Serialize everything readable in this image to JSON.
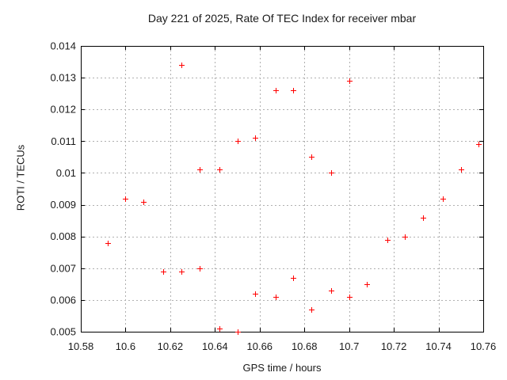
{
  "chart_data": {
    "type": "scatter",
    "title": "Day 221 of 2025, Rate Of TEC Index for receiver mbar",
    "xlabel": "GPS time / hours",
    "ylabel": "ROTI / TECUs",
    "xlim": [
      10.58,
      10.76
    ],
    "ylim": [
      0.005,
      0.014
    ],
    "grid": true,
    "legend": "none",
    "x_ticks": [
      {
        "v": 10.58,
        "label": "10.58"
      },
      {
        "v": 10.6,
        "label": "10.6"
      },
      {
        "v": 10.62,
        "label": "10.62"
      },
      {
        "v": 10.64,
        "label": "10.64"
      },
      {
        "v": 10.66,
        "label": "10.66"
      },
      {
        "v": 10.68,
        "label": "10.68"
      },
      {
        "v": 10.7,
        "label": "10.7"
      },
      {
        "v": 10.72,
        "label": "10.72"
      },
      {
        "v": 10.74,
        "label": "10.74"
      },
      {
        "v": 10.76,
        "label": "10.76"
      }
    ],
    "y_ticks": [
      {
        "v": 0.005,
        "label": "0.005"
      },
      {
        "v": 0.006,
        "label": "0.006"
      },
      {
        "v": 0.007,
        "label": "0.007"
      },
      {
        "v": 0.008,
        "label": "0.008"
      },
      {
        "v": 0.009,
        "label": "0.009"
      },
      {
        "v": 0.01,
        "label": "0.01"
      },
      {
        "v": 0.011,
        "label": "0.011"
      },
      {
        "v": 0.012,
        "label": "0.012"
      },
      {
        "v": 0.013,
        "label": "0.013"
      },
      {
        "v": 0.014,
        "label": "0.014"
      }
    ],
    "marker": {
      "shape": "plus",
      "color": "#ff0000",
      "size": 7
    },
    "colors": {
      "background": "#ffffff",
      "grid": "#b0b0b0",
      "axis": "#000000",
      "text": "#1a1a1a",
      "marker": "#ff0000"
    },
    "points": [
      [
        10.592,
        0.0078
      ],
      [
        10.6,
        0.0092
      ],
      [
        10.608,
        0.0091
      ],
      [
        10.617,
        0.0069
      ],
      [
        10.625,
        0.0134
      ],
      [
        10.625,
        0.0069
      ],
      [
        10.633,
        0.0101
      ],
      [
        10.633,
        0.007
      ],
      [
        10.642,
        0.0101
      ],
      [
        10.642,
        0.0051
      ],
      [
        10.65,
        0.011
      ],
      [
        10.65,
        0.005
      ],
      [
        10.658,
        0.0111
      ],
      [
        10.658,
        0.0062
      ],
      [
        10.667,
        0.0126
      ],
      [
        10.667,
        0.0061
      ],
      [
        10.675,
        0.0126
      ],
      [
        10.675,
        0.0067
      ],
      [
        10.683,
        0.0105
      ],
      [
        10.683,
        0.0057
      ],
      [
        10.692,
        0.01
      ],
      [
        10.692,
        0.0063
      ],
      [
        10.7,
        0.0129
      ],
      [
        10.7,
        0.0061
      ],
      [
        10.708,
        0.0065
      ],
      [
        10.717,
        0.0079
      ],
      [
        10.725,
        0.008
      ],
      [
        10.733,
        0.0086
      ],
      [
        10.742,
        0.0092
      ],
      [
        10.75,
        0.0101
      ],
      [
        10.758,
        0.0109
      ]
    ]
  }
}
